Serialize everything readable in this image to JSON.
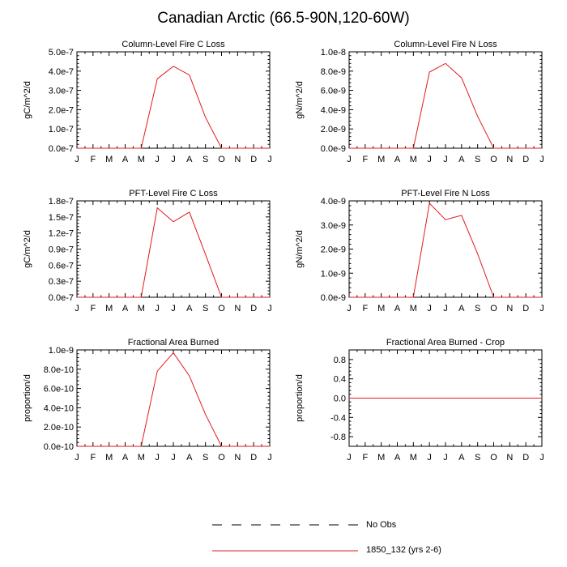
{
  "title": "Canadian Arctic (66.5-90N,120-60W)",
  "chart_data": [
    {
      "type": "line",
      "title": "Column-Level Fire C Loss",
      "ylabel": "gC/m^2/d",
      "categories": [
        "J",
        "F",
        "M",
        "A",
        "M",
        "J",
        "J",
        "A",
        "S",
        "O",
        "N",
        "D",
        "J"
      ],
      "yticks": [
        "0.0e-7",
        "1.0e-7",
        "2.0e-7",
        "3.0e-7",
        "4.0e-7",
        "5.0e-7"
      ],
      "ylim": [
        0,
        5e-07
      ],
      "series": [
        {
          "values": [
            0,
            0,
            0,
            0,
            0,
            3.6e-07,
            4.25e-07,
            3.8e-07,
            1.6e-07,
            0,
            0,
            0,
            0
          ],
          "color": "#e31a1c"
        }
      ]
    },
    {
      "type": "line",
      "title": "Column-Level Fire N Loss",
      "ylabel": "gN/m^2/d",
      "categories": [
        "J",
        "F",
        "M",
        "A",
        "M",
        "J",
        "J",
        "A",
        "S",
        "O",
        "N",
        "D",
        "J"
      ],
      "yticks": [
        "0.0e-9",
        "2.0e-9",
        "4.0e-9",
        "6.0e-9",
        "8.0e-9",
        "1.0e-8"
      ],
      "ylim": [
        0,
        1e-08
      ],
      "series": [
        {
          "values": [
            0,
            0,
            0,
            0,
            0,
            7.9e-09,
            8.8e-09,
            7.3e-09,
            3.3e-09,
            0,
            0,
            0,
            0
          ],
          "color": "#e31a1c"
        }
      ]
    },
    {
      "type": "line",
      "title": "PFT-Level Fire C Loss",
      "ylabel": "gC/m^2/d",
      "categories": [
        "J",
        "F",
        "M",
        "A",
        "M",
        "J",
        "J",
        "A",
        "S",
        "O",
        "N",
        "D",
        "J"
      ],
      "yticks": [
        "0.0e-7",
        "0.3e-7",
        "0.6e-7",
        "0.9e-7",
        "1.2e-7",
        "1.5e-7",
        "1.8e-7"
      ],
      "ylim": [
        0,
        1.8e-07
      ],
      "series": [
        {
          "values": [
            0,
            0,
            0,
            0,
            0,
            1.67e-07,
            1.41e-07,
            1.59e-07,
            8e-08,
            0,
            0,
            0,
            0
          ],
          "color": "#e31a1c"
        }
      ]
    },
    {
      "type": "line",
      "title": "PFT-Level Fire N Loss",
      "ylabel": "gN/m^2/d",
      "categories": [
        "J",
        "F",
        "M",
        "A",
        "M",
        "J",
        "J",
        "A",
        "S",
        "O",
        "N",
        "D",
        "J"
      ],
      "yticks": [
        "0.0e-9",
        "1.0e-9",
        "2.0e-9",
        "3.0e-9",
        "4.0e-9"
      ],
      "ylim": [
        0,
        4e-09
      ],
      "series": [
        {
          "values": [
            0,
            0,
            0,
            0,
            0,
            3.9e-09,
            3.22e-09,
            3.4e-09,
            1.8e-09,
            0,
            0,
            0,
            0
          ],
          "color": "#e31a1c"
        }
      ]
    },
    {
      "type": "line",
      "title": "Fractional Area Burned",
      "ylabel": "proportion/d",
      "categories": [
        "J",
        "F",
        "M",
        "A",
        "M",
        "J",
        "J",
        "A",
        "S",
        "O",
        "N",
        "D",
        "J"
      ],
      "yticks": [
        "0.0e-10",
        "2.0e-10",
        "4.0e-10",
        "6.0e-10",
        "8.0e-10",
        "1.0e-9"
      ],
      "ylim": [
        0,
        1e-09
      ],
      "series": [
        {
          "values": [
            0,
            0,
            0,
            0,
            0,
            7.8e-10,
            9.7e-10,
            7.3e-10,
            3.3e-10,
            0,
            0,
            0,
            0
          ],
          "color": "#e31a1c"
        }
      ]
    },
    {
      "type": "line",
      "title": "Fractional Area Burned - Crop",
      "ylabel": "proportion/d",
      "categories": [
        "J",
        "F",
        "M",
        "A",
        "M",
        "J",
        "J",
        "A",
        "S",
        "O",
        "N",
        "D",
        "J"
      ],
      "yticks": [
        "-0.8",
        "-0.4",
        "0.0",
        "0.4",
        "0.8"
      ],
      "ylim": [
        -1,
        1
      ],
      "series": [
        {
          "values": [
            0,
            0,
            0,
            0,
            0,
            0,
            0,
            0,
            0,
            0,
            0,
            0,
            0
          ],
          "color": "#e31a1c"
        }
      ]
    }
  ],
  "legend": {
    "items": [
      {
        "label": "No Obs",
        "style": "dashed",
        "color": "#000000"
      },
      {
        "label": "1850_132 (yrs 2-6)",
        "style": "solid",
        "color": "#e31a1c"
      }
    ]
  }
}
